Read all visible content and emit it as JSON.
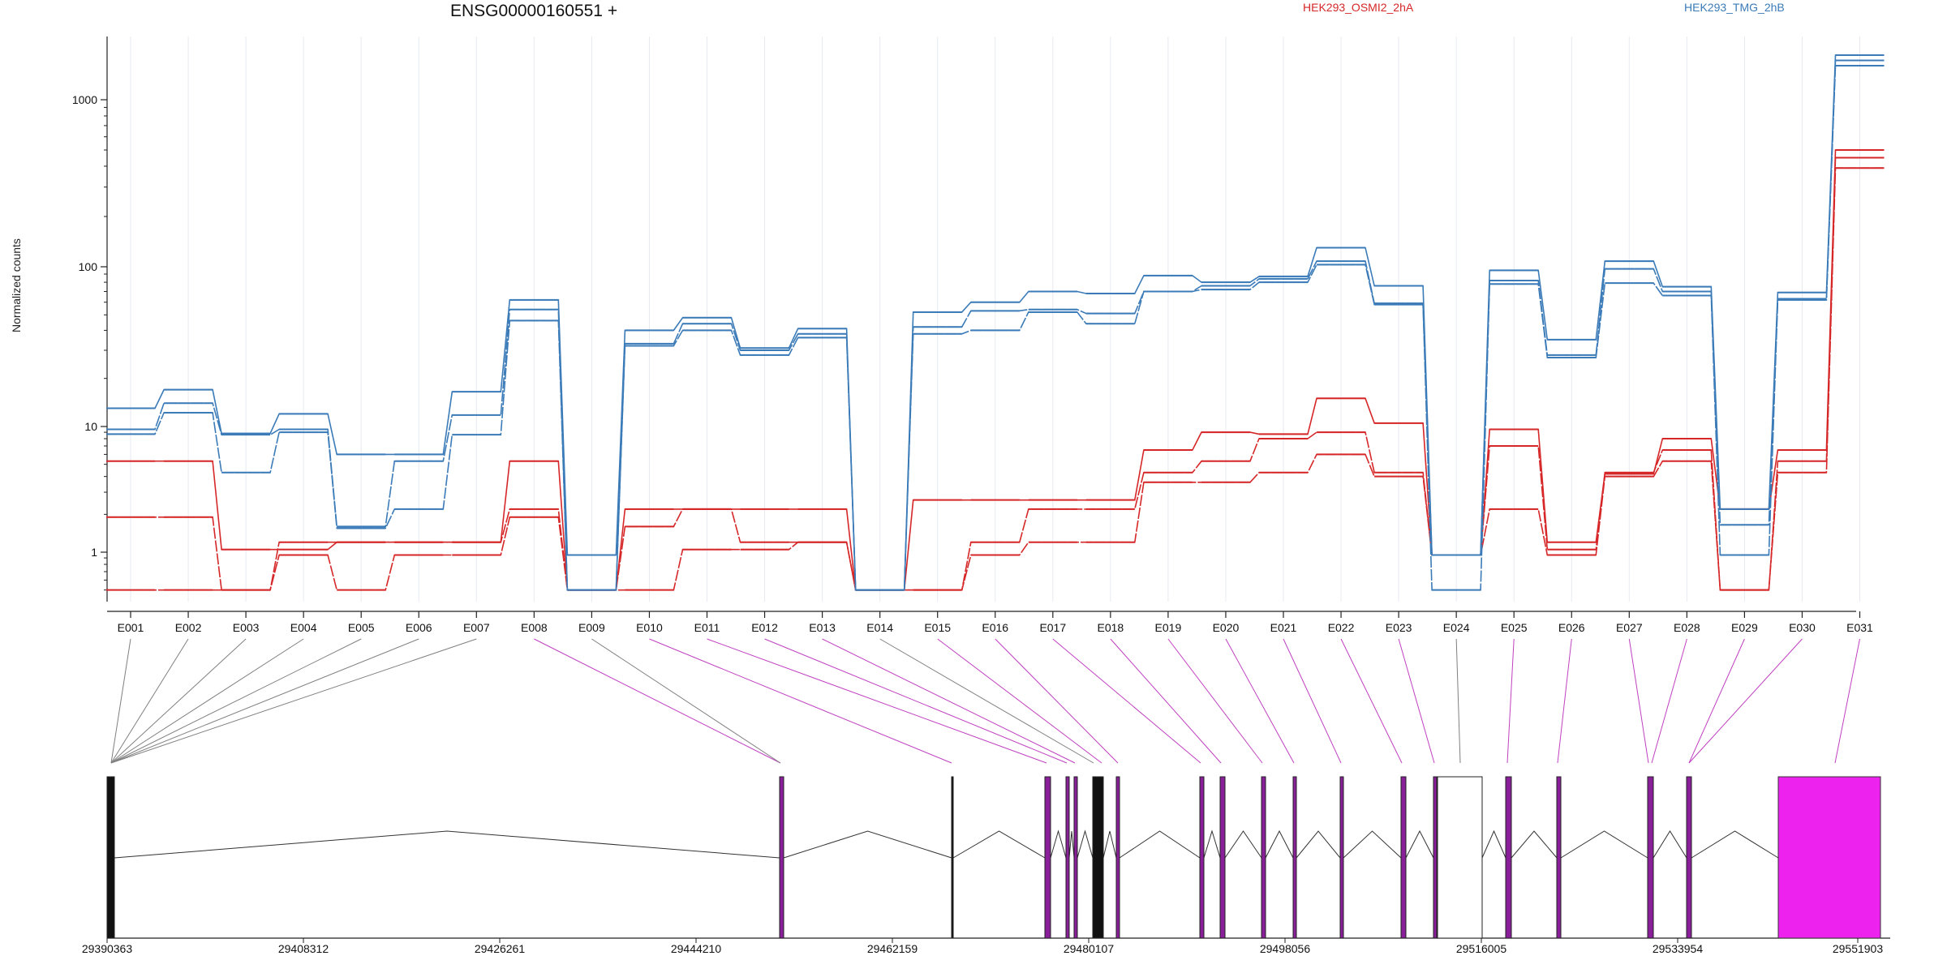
{
  "chart_data": {
    "type": "line",
    "title": "ENSG00000160551 +",
    "ylabel": "Normalized counts",
    "yscale": "log",
    "ylim": [
      0.5,
      2500
    ],
    "ytick_labels": [
      "1",
      "10",
      "100",
      "1000"
    ],
    "yticks": [
      1,
      10,
      100,
      1000
    ],
    "grid": true,
    "legend_position": "top",
    "categories": [
      "E001",
      "E002",
      "E003",
      "E004",
      "E005",
      "E006",
      "E007",
      "E008",
      "E009",
      "E010",
      "E011",
      "E012",
      "E013",
      "E014",
      "E015",
      "E016",
      "E017",
      "E018",
      "E019",
      "E020",
      "E021",
      "E022",
      "E023",
      "E024",
      "E025",
      "E026",
      "E027",
      "E028",
      "E029",
      "E030",
      "E031"
    ],
    "series": [
      {
        "name": "HEK293_OSMI2_2hA",
        "color": "#d62728",
        "values": [
          5.3,
          5.3,
          1.05,
          1.05,
          1.2,
          1.2,
          1.2,
          5.3,
          0.5,
          2.2,
          2.2,
          2.2,
          2.2,
          0.5,
          2.6,
          2.6,
          2.6,
          2.6,
          6.5,
          9.0,
          8.7,
          15,
          10.5,
          0.95,
          9.5,
          1.2,
          4.2,
          8.0,
          2.2,
          6.5,
          500
        ]
      },
      {
        "color": "#d62728",
        "values": [
          1.9,
          1.9,
          0.5,
          1.2,
          1.2,
          1.2,
          1.2,
          2.2,
          0.5,
          1.6,
          2.2,
          1.2,
          1.2,
          0.5,
          0.5,
          1.2,
          2.2,
          2.2,
          4.3,
          5.3,
          8.0,
          9.0,
          4.3,
          0.95,
          7.0,
          1.05,
          4.3,
          6.5,
          0.5,
          5.3,
          450
        ]
      },
      {
        "color": "#d62728",
        "values": [
          0.5,
          0.5,
          0.5,
          0.95,
          0.5,
          0.95,
          0.95,
          1.9,
          0.5,
          0.5,
          1.05,
          1.05,
          1.2,
          0.5,
          0.5,
          0.95,
          1.2,
          1.2,
          3.6,
          3.6,
          4.3,
          6.0,
          4.0,
          0.95,
          2.2,
          0.95,
          4.0,
          5.3,
          0.5,
          4.3,
          390
        ]
      },
      {
        "name": "HEK293_TMG_2hB",
        "color": "#3b7bb8",
        "values": [
          13,
          17,
          8.8,
          12,
          6.0,
          6.0,
          16.5,
          62,
          0.95,
          40,
          48,
          31,
          41,
          0.5,
          52,
          60,
          70,
          68,
          88,
          80,
          87,
          130,
          76,
          0.95,
          95,
          35,
          108,
          75,
          2.2,
          69,
          1850
        ]
      },
      {
        "color": "#3b7bb8",
        "values": [
          9.5,
          14,
          8.6,
          9.5,
          1.6,
          5.3,
          11.8,
          54,
          0.5,
          33,
          44,
          30,
          38,
          0.5,
          42,
          53,
          54,
          51,
          70,
          76,
          84,
          108,
          59,
          0.95,
          82,
          28,
          97,
          70,
          1.65,
          63,
          1720
        ]
      },
      {
        "color": "#3b7bb8",
        "values": [
          8.7,
          12.2,
          4.3,
          9.0,
          1.55,
          2.2,
          8.6,
          46,
          0.5,
          32,
          40,
          28,
          36,
          0.5,
          38,
          40,
          52,
          44,
          70,
          72,
          80,
          103,
          58,
          0.5,
          78,
          27,
          79,
          66,
          0.95,
          62,
          1600
        ]
      }
    ],
    "gene_model": {
      "chromosome_ticks": [
        "29390363",
        "29408312",
        "29426261",
        "29444210",
        "29462159",
        "29480107",
        "29498056",
        "29516005",
        "29533954",
        "29551903"
      ],
      "exon_region_colors": [
        "#808080",
        "#808080",
        "#808080",
        "#808080",
        "#808080",
        "#808080",
        "#808080",
        "#c040c0",
        "#808080",
        "#c040c0",
        "#c040c0",
        "#c040c0",
        "#c040c0",
        "#808080",
        "#c040c0",
        "#c040c0",
        "#c040c0",
        "#c040c0",
        "#c040c0",
        "#c040c0",
        "#c040c0",
        "#c040c0",
        "#c040c0",
        "#808080",
        "#c040c0",
        "#c040c0",
        "#c040c0",
        "#c040c0",
        "#c040c0",
        "#c040c0",
        "#c040c0"
      ],
      "highlight_color": "#ee22ee"
    }
  }
}
